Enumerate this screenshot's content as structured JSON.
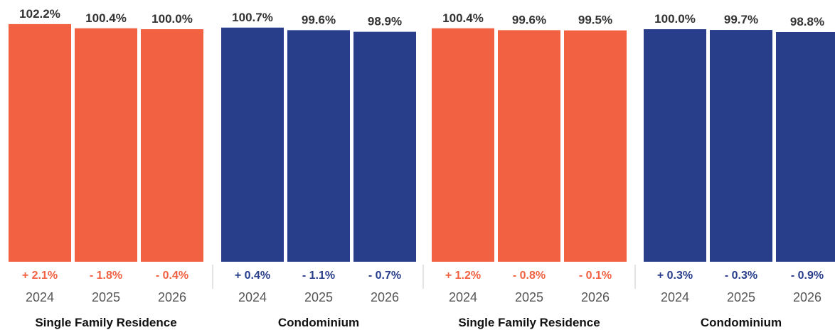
{
  "colors": {
    "single_family": "#f26142",
    "condominium": "#283e8b",
    "value_text": "#333333",
    "year_text": "#555555",
    "group_label": "#111111",
    "separator": "#c8c8c8"
  },
  "chart_data": [
    {
      "type": "bar",
      "group_label": "Single Family Residence",
      "color_key": "single_family",
      "categories": [
        "2024",
        "2025",
        "2026"
      ],
      "values": [
        102.2,
        100.4,
        100.0
      ],
      "value_labels": [
        "102.2%",
        "100.4%",
        "100.0%"
      ],
      "change_labels": [
        "+ 2.1%",
        "- 1.8%",
        "- 0.4%"
      ],
      "ylim": [
        0,
        104
      ]
    },
    {
      "type": "bar",
      "group_label": "Condominium",
      "color_key": "condominium",
      "categories": [
        "2024",
        "2025",
        "2026"
      ],
      "values": [
        100.7,
        99.6,
        98.9
      ],
      "value_labels": [
        "100.7%",
        "99.6%",
        "98.9%"
      ],
      "change_labels": [
        "+ 0.4%",
        "- 1.1%",
        "- 0.7%"
      ],
      "ylim": [
        0,
        104
      ]
    },
    {
      "type": "bar",
      "group_label": "Single Family Residence",
      "color_key": "single_family",
      "categories": [
        "2024",
        "2025",
        "2026"
      ],
      "values": [
        100.4,
        99.6,
        99.5
      ],
      "value_labels": [
        "100.4%",
        "99.6%",
        "99.5%"
      ],
      "change_labels": [
        "+ 1.2%",
        "- 0.8%",
        "- 0.1%"
      ],
      "ylim": [
        0,
        104
      ]
    },
    {
      "type": "bar",
      "group_label": "Condominium",
      "color_key": "condominium",
      "categories": [
        "2024",
        "2025",
        "2026"
      ],
      "values": [
        100.0,
        99.7,
        98.8
      ],
      "value_labels": [
        "100.0%",
        "99.7%",
        "98.8%"
      ],
      "change_labels": [
        "+ 0.3%",
        "- 0.3%",
        "- 0.9%"
      ],
      "ylim": [
        0,
        104
      ]
    }
  ]
}
